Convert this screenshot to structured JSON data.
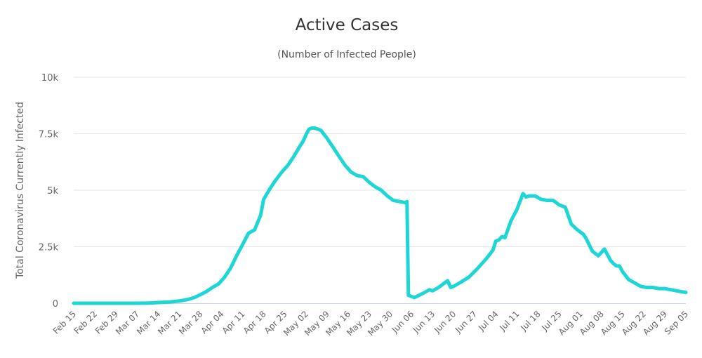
{
  "chart_data": {
    "type": "line",
    "title": "Active Cases",
    "subtitle": "(Number of Infected People)",
    "xlabel": "",
    "ylabel": "Total Coronavirus Currently Infected",
    "ylim": [
      0,
      10000
    ],
    "y_ticks": [
      {
        "value": 0,
        "label": "0"
      },
      {
        "value": 2500,
        "label": "2.5k"
      },
      {
        "value": 5000,
        "label": "5k"
      },
      {
        "value": 7500,
        "label": "7.5k"
      },
      {
        "value": 10000,
        "label": "10k"
      }
    ],
    "x_range_days": [
      0,
      203
    ],
    "x_ticks": [
      {
        "day": 0,
        "label": "Feb 15"
      },
      {
        "day": 7,
        "label": "Feb 22"
      },
      {
        "day": 14,
        "label": "Feb 29"
      },
      {
        "day": 21,
        "label": "Mar 07"
      },
      {
        "day": 28,
        "label": "Mar 14"
      },
      {
        "day": 35,
        "label": "Mar 21"
      },
      {
        "day": 42,
        "label": "Mar 28"
      },
      {
        "day": 49,
        "label": "Apr 04"
      },
      {
        "day": 56,
        "label": "Apr 11"
      },
      {
        "day": 63,
        "label": "Apr 18"
      },
      {
        "day": 70,
        "label": "Apr 25"
      },
      {
        "day": 77,
        "label": "May 02"
      },
      {
        "day": 84,
        "label": "May 09"
      },
      {
        "day": 91,
        "label": "May 16"
      },
      {
        "day": 98,
        "label": "May 23"
      },
      {
        "day": 105,
        "label": "May 30"
      },
      {
        "day": 112,
        "label": "Jun 06"
      },
      {
        "day": 119,
        "label": "Jun 13"
      },
      {
        "day": 126,
        "label": "Jun 20"
      },
      {
        "day": 133,
        "label": "Jun 27"
      },
      {
        "day": 140,
        "label": "Jul 04"
      },
      {
        "day": 147,
        "label": "Jul 11"
      },
      {
        "day": 154,
        "label": "Jul 18"
      },
      {
        "day": 161,
        "label": "Jul 25"
      },
      {
        "day": 168,
        "label": "Aug 01"
      },
      {
        "day": 175,
        "label": "Aug 08"
      },
      {
        "day": 182,
        "label": "Aug 15"
      },
      {
        "day": 189,
        "label": "Aug 22"
      },
      {
        "day": 196,
        "label": "Aug 29"
      },
      {
        "day": 203,
        "label": "Sep 05"
      }
    ],
    "grid": true,
    "legend": "none",
    "series": [
      {
        "name": "Currently Infected",
        "color": "#1fd6d6",
        "x_days": [
          0,
          10,
          20,
          25,
          28,
          32,
          35,
          38,
          40,
          42,
          44,
          46,
          48,
          50,
          52,
          54,
          56,
          58,
          60,
          62,
          63,
          65,
          67,
          69,
          71,
          73,
          75,
          76,
          77,
          78,
          79,
          80,
          82,
          84,
          86,
          88,
          90,
          92,
          94,
          96,
          98,
          100,
          102,
          104,
          106,
          108,
          110,
          110.5,
          111,
          113,
          116,
          118,
          119,
          121,
          124,
          125,
          126,
          128,
          131,
          134,
          137,
          139,
          140,
          141,
          142,
          143,
          145,
          147,
          149,
          150,
          151,
          153,
          155,
          157,
          159,
          161,
          163,
          165,
          167,
          169,
          170,
          172,
          174,
          176,
          178,
          179,
          180,
          181,
          182,
          184,
          186,
          188,
          190,
          192,
          194,
          196,
          198,
          200,
          202,
          203
        ],
        "values": [
          0,
          0,
          0,
          10,
          30,
          60,
          100,
          170,
          250,
          380,
          520,
          700,
          850,
          1150,
          1550,
          2100,
          2600,
          3100,
          3250,
          3900,
          4600,
          5050,
          5450,
          5800,
          6100,
          6500,
          6950,
          7150,
          7450,
          7700,
          7750,
          7750,
          7650,
          7300,
          6900,
          6500,
          6100,
          5800,
          5650,
          5600,
          5350,
          5150,
          5000,
          4750,
          4550,
          4500,
          4450,
          4500,
          350,
          250,
          450,
          600,
          550,
          700,
          1000,
          700,
          750,
          900,
          1150,
          1550,
          2000,
          2350,
          2750,
          2800,
          2950,
          2900,
          3650,
          4150,
          4850,
          4700,
          4750,
          4750,
          4600,
          4550,
          4550,
          4350,
          4250,
          3500,
          3250,
          3050,
          2850,
          2300,
          2100,
          2400,
          1900,
          1750,
          1650,
          1650,
          1400,
          1050,
          900,
          750,
          700,
          700,
          650,
          650,
          600,
          550,
          500,
          480
        ]
      }
    ]
  }
}
